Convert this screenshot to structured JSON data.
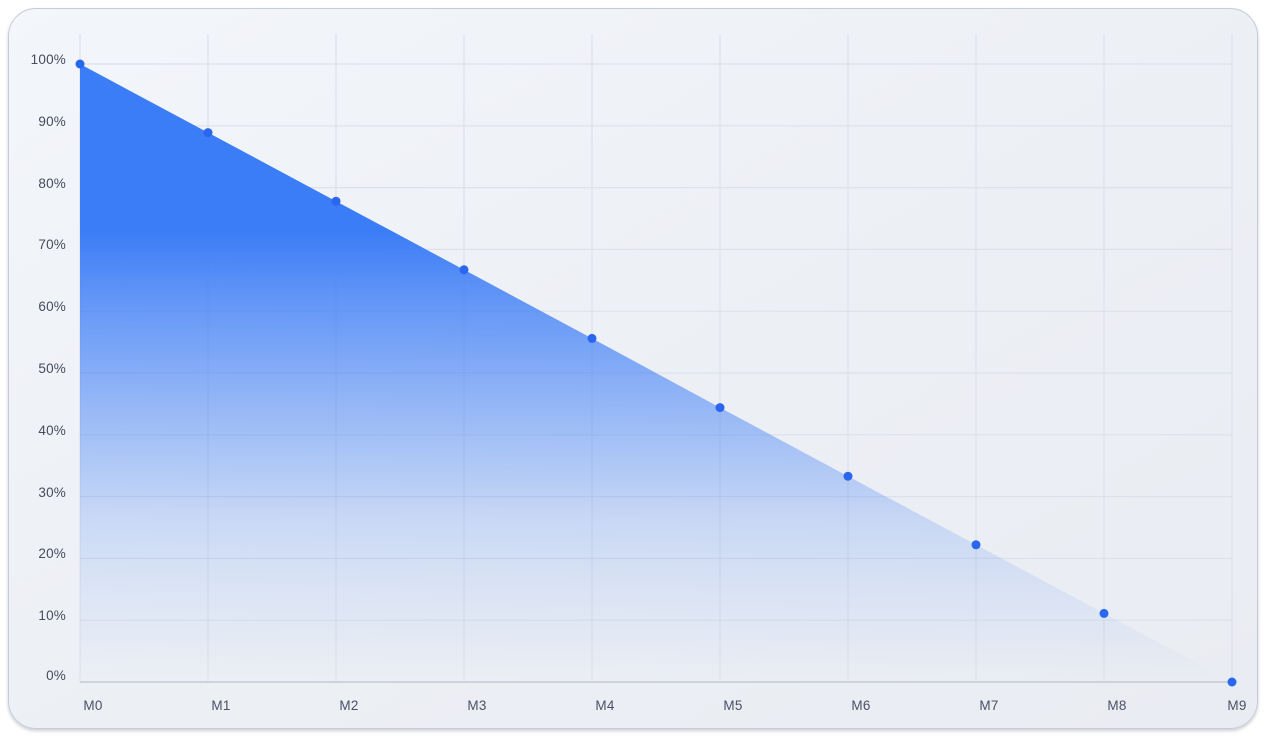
{
  "colors": {
    "accent": "#3b7cf7",
    "point": "#2b66ee",
    "grid": "#dde1e9",
    "axis_baseline": "#c3c9d3",
    "card_background": "#edf0f5",
    "page_background": "#ffffff",
    "label_text": "#454c5c"
  },
  "chart_data": {
    "type": "area",
    "title": "",
    "xlabel": "",
    "ylabel": "",
    "categories": [
      "M0",
      "M1",
      "M2",
      "M3",
      "M4",
      "M5",
      "M6",
      "M7",
      "M8",
      "M9"
    ],
    "values": [
      100,
      88.9,
      77.8,
      66.7,
      55.6,
      44.4,
      33.3,
      22.2,
      11.1,
      0
    ],
    "ylim": [
      0,
      100
    ],
    "y_ticks": [
      0,
      10,
      20,
      30,
      40,
      50,
      60,
      70,
      80,
      90,
      100
    ],
    "y_tick_labels": [
      "0%",
      "10%",
      "20%",
      "30%",
      "40%",
      "50%",
      "60%",
      "70%",
      "80%",
      "90%",
      "100%"
    ],
    "grid": true,
    "legend": false,
    "marker": "dot"
  }
}
